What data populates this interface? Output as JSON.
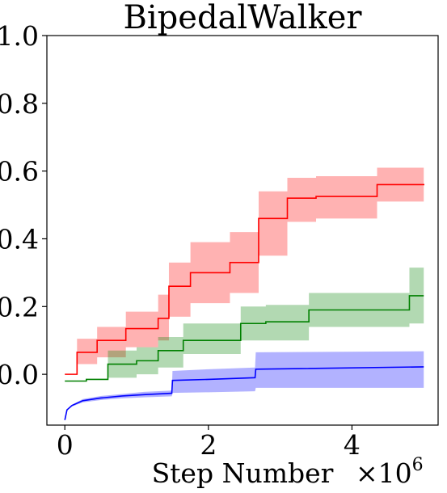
{
  "chart_data": {
    "type": "line",
    "title": "BipedalWalker",
    "xlabel": "Step Number",
    "ylabel": "",
    "x_offset_label": {
      "base": "×10",
      "exponent": "6"
    },
    "xlim": [
      -0.25,
      5.2
    ],
    "ylim": [
      -0.15,
      1.0
    ],
    "x_unit_multiplier": 1000000,
    "xticks": [
      {
        "value": 0,
        "label": "0"
      },
      {
        "value": 2,
        "label": "2"
      },
      {
        "value": 4,
        "label": "4"
      }
    ],
    "yticks": [
      {
        "value": 0.0,
        "label": "0.0"
      },
      {
        "value": 0.2,
        "label": "0.2"
      },
      {
        "value": 0.4,
        "label": "0.4"
      },
      {
        "value": 0.6,
        "label": "0.6"
      },
      {
        "value": 0.8,
        "label": "0.8"
      },
      {
        "value": 1.0,
        "label": "1.0"
      }
    ],
    "grid": false,
    "series": [
      {
        "color": "#ff0000",
        "band_color": "#ff0000",
        "band_opacity": 0.3,
        "step": true,
        "points": [
          {
            "x": 0.0,
            "y": 0.0,
            "lo": 0.0,
            "hi": 0.0
          },
          {
            "x": 0.17,
            "y": 0.065,
            "lo": 0.03,
            "hi": 0.105
          },
          {
            "x": 0.45,
            "y": 0.1,
            "lo": 0.05,
            "hi": 0.14
          },
          {
            "x": 0.85,
            "y": 0.135,
            "lo": 0.08,
            "hi": 0.185
          },
          {
            "x": 1.3,
            "y": 0.165,
            "lo": 0.1,
            "hi": 0.235
          },
          {
            "x": 1.45,
            "y": 0.26,
            "lo": 0.17,
            "hi": 0.33
          },
          {
            "x": 1.75,
            "y": 0.3,
            "lo": 0.21,
            "hi": 0.39
          },
          {
            "x": 2.3,
            "y": 0.33,
            "lo": 0.24,
            "hi": 0.42
          },
          {
            "x": 2.7,
            "y": 0.46,
            "lo": 0.35,
            "hi": 0.54
          },
          {
            "x": 3.1,
            "y": 0.52,
            "lo": 0.45,
            "hi": 0.58
          },
          {
            "x": 3.5,
            "y": 0.525,
            "lo": 0.46,
            "hi": 0.585
          },
          {
            "x": 4.35,
            "y": 0.56,
            "lo": 0.51,
            "hi": 0.61
          },
          {
            "x": 5.0,
            "y": 0.562,
            "lo": 0.51,
            "hi": 0.612
          }
        ]
      },
      {
        "color": "#008000",
        "band_color": "#008000",
        "band_opacity": 0.3,
        "step": true,
        "points": [
          {
            "x": 0.0,
            "y": -0.02,
            "lo": -0.02,
            "hi": -0.02
          },
          {
            "x": 0.3,
            "y": -0.015,
            "lo": -0.015,
            "hi": -0.015
          },
          {
            "x": 0.6,
            "y": 0.03,
            "lo": -0.01,
            "hi": 0.07
          },
          {
            "x": 1.0,
            "y": 0.04,
            "lo": 0.0,
            "hi": 0.08
          },
          {
            "x": 1.3,
            "y": 0.07,
            "lo": 0.02,
            "hi": 0.11
          },
          {
            "x": 1.65,
            "y": 0.1,
            "lo": 0.06,
            "hi": 0.15
          },
          {
            "x": 2.45,
            "y": 0.15,
            "lo": 0.1,
            "hi": 0.2
          },
          {
            "x": 2.8,
            "y": 0.155,
            "lo": 0.1,
            "hi": 0.205
          },
          {
            "x": 3.4,
            "y": 0.19,
            "lo": 0.14,
            "hi": 0.24
          },
          {
            "x": 4.8,
            "y": 0.232,
            "lo": 0.15,
            "hi": 0.315
          },
          {
            "x": 5.0,
            "y": 0.232,
            "lo": 0.15,
            "hi": 0.315
          }
        ]
      },
      {
        "color": "#0000ff",
        "band_color": "#0000ff",
        "band_opacity": 0.3,
        "step": false,
        "points": [
          {
            "x": 0.0,
            "y": -0.135,
            "lo": -0.135,
            "hi": -0.135
          },
          {
            "x": 0.03,
            "y": -0.105,
            "lo": -0.105,
            "hi": -0.105
          },
          {
            "x": 0.1,
            "y": -0.092,
            "lo": -0.095,
            "hi": -0.09
          },
          {
            "x": 0.25,
            "y": -0.078,
            "lo": -0.083,
            "hi": -0.073
          },
          {
            "x": 0.5,
            "y": -0.07,
            "lo": -0.076,
            "hi": -0.064
          },
          {
            "x": 0.8,
            "y": -0.064,
            "lo": -0.071,
            "hi": -0.058
          },
          {
            "x": 1.1,
            "y": -0.06,
            "lo": -0.068,
            "hi": -0.052
          },
          {
            "x": 1.49,
            "y": -0.056,
            "lo": -0.065,
            "hi": -0.048
          },
          {
            "x": 1.5,
            "y": -0.018,
            "lo": -0.055,
            "hi": 0.01
          },
          {
            "x": 2.0,
            "y": -0.015,
            "lo": -0.053,
            "hi": 0.015
          },
          {
            "x": 2.65,
            "y": -0.01,
            "lo": -0.05,
            "hi": 0.02
          },
          {
            "x": 2.66,
            "y": 0.015,
            "lo": -0.04,
            "hi": 0.065
          },
          {
            "x": 5.0,
            "y": 0.022,
            "lo": -0.04,
            "hi": 0.068
          }
        ]
      }
    ]
  }
}
